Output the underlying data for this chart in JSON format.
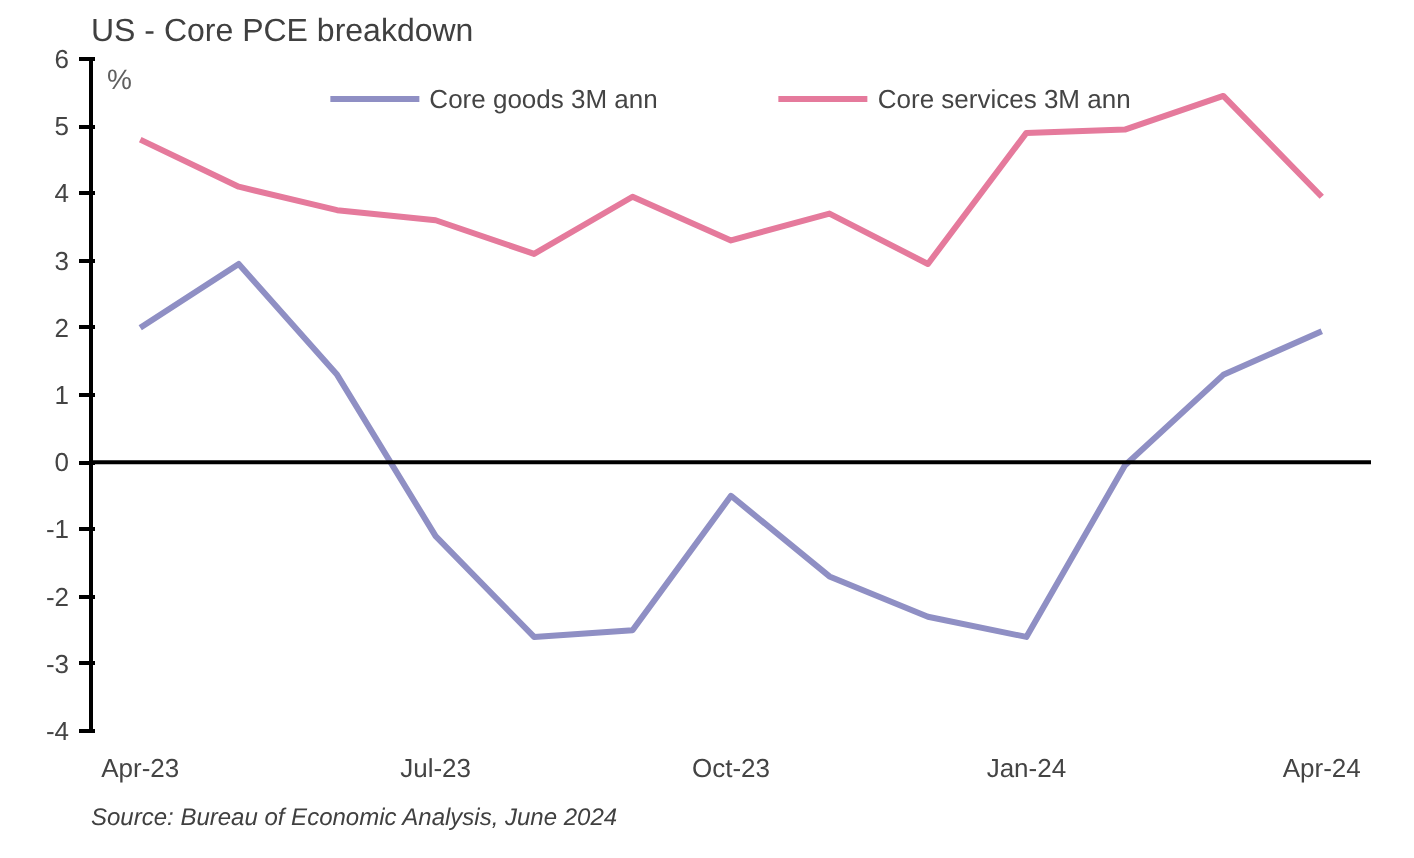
{
  "chart_data": {
    "type": "line",
    "title": "US - Core PCE breakdown",
    "ylabel": "%",
    "categories": [
      "Apr-23",
      null,
      null,
      "Jul-23",
      null,
      null,
      "Oct-23",
      null,
      null,
      "Jan-24",
      null,
      null,
      "Apr-24"
    ],
    "series": [
      {
        "name": "Core goods 3M ann",
        "color": "#8f8fc4",
        "values": [
          2.0,
          2.95,
          1.3,
          -1.1,
          -2.6,
          -2.5,
          -0.5,
          -1.7,
          -2.3,
          -2.6,
          -0.05,
          1.3,
          1.95
        ]
      },
      {
        "name": "Core services 3M ann",
        "color": "#e57a9c",
        "values": [
          4.8,
          4.1,
          3.75,
          3.6,
          3.1,
          3.95,
          3.3,
          3.7,
          2.95,
          4.9,
          4.95,
          5.45,
          3.95
        ]
      }
    ],
    "ylim": [
      -4,
      6
    ],
    "yticks": [
      -4,
      -3,
      -2,
      -1,
      0,
      1,
      2,
      3,
      4,
      5,
      6
    ],
    "ref_lines": [
      {
        "axis": "y",
        "value": 0,
        "label": null,
        "color": "#000000"
      }
    ],
    "grid": false,
    "legend": "top",
    "annotations": [
      "Source: Bureau of Economic Analysis, June 2024"
    ]
  }
}
